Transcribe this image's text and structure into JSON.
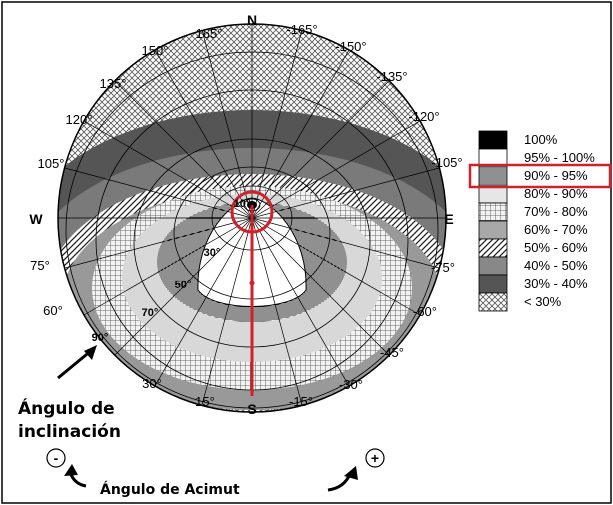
{
  "cardinal": {
    "north": "N",
    "south": "S",
    "east": "E",
    "west": "W"
  },
  "azimuth_labels": {
    "a165": "165°",
    "an165": "-165°",
    "a150": "150°",
    "an150": "-150°",
    "a135": "135°",
    "an135": "-135°",
    "a120": "120°",
    "an120": "-120°",
    "a105": "105°",
    "an105": "-105°",
    "a75": "75°",
    "an75": "-75°",
    "a60": "60°",
    "an60": "-60°",
    "an45": "-45°",
    "a30": "30°",
    "an30": "-30°",
    "a15": "15°",
    "an15": "-15°"
  },
  "tilt_labels": {
    "t10": "10°",
    "t30": "30°",
    "t50": "50°",
    "t70": "70°",
    "t90": "90°"
  },
  "annotations": {
    "tilt_line1": "Ángulo de",
    "tilt_line2": "inclinación",
    "azimuth_caption": "Ángulo de Acimut",
    "minus_sign": "-",
    "plus_sign": "+"
  },
  "legend": {
    "items": [
      {
        "label": "100%",
        "swatch": "solid-black"
      },
      {
        "label": "95% - 100%",
        "swatch": "white"
      },
      {
        "label": "90% - 95%",
        "swatch": "horizontal-lines",
        "highlighted": true
      },
      {
        "label": "80% - 90%",
        "swatch": "light-gray"
      },
      {
        "label": "70% - 80%",
        "swatch": "grid"
      },
      {
        "label": "60% - 70%",
        "swatch": "medium-gray"
      },
      {
        "label": "50% - 60%",
        "swatch": "diagonal-lines"
      },
      {
        "label": "40% - 50%",
        "swatch": "gray"
      },
      {
        "label": "30% - 40%",
        "swatch": "dark-gray"
      },
      {
        "label": "< 30%",
        "swatch": "crosshatch"
      }
    ]
  },
  "colors": {
    "highlight": "#d0202a",
    "border": "#000000"
  }
}
